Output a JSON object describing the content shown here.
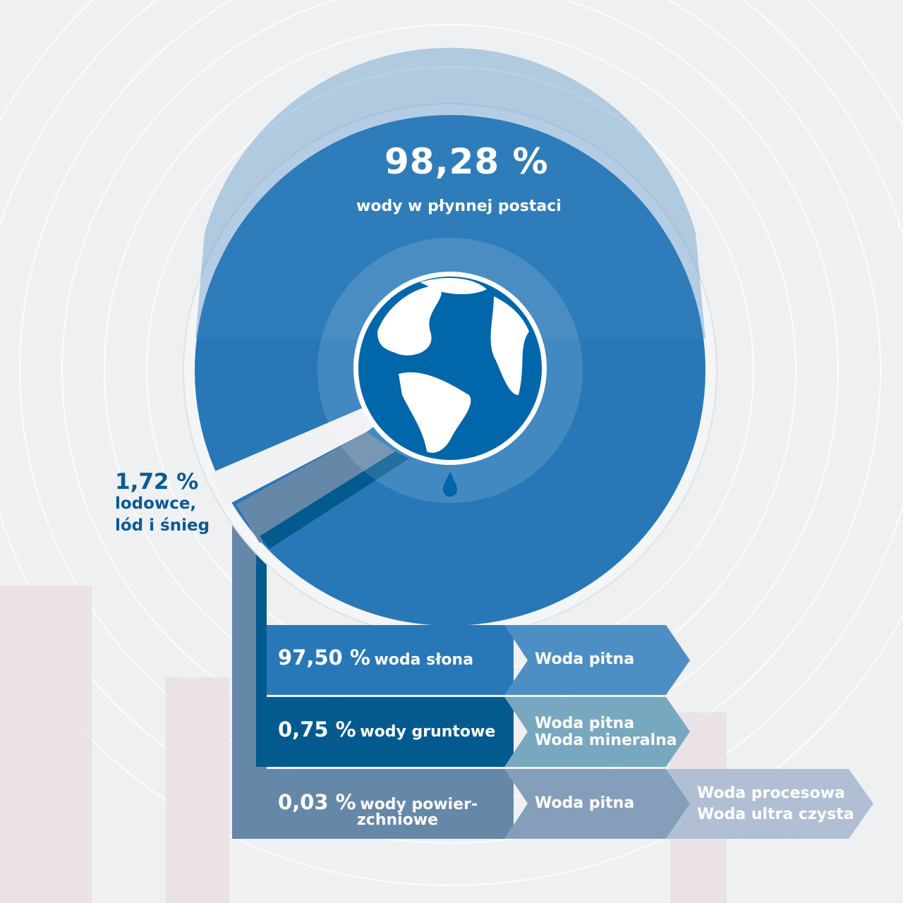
{
  "main": {
    "value": "98,28 %",
    "label": "wody w płynnej postaci"
  },
  "ice": {
    "value": "1,72 %",
    "label_line1": "lodowce,",
    "label_line2": "lód i śnieg"
  },
  "rows": [
    {
      "value": "97,50 %",
      "label": "woda słona",
      "uses": [
        "Woda pitna"
      ]
    },
    {
      "value": "0,75 %",
      "label": "wody gruntowe",
      "uses": [
        "Woda pitna",
        "Woda mineralna"
      ]
    },
    {
      "value": "0,03 %",
      "label_line1": "wody powier-",
      "label_line2": "zchniowe",
      "uses": [
        "Woda pitna"
      ],
      "extra_uses": [
        "Woda procesowa",
        "Woda ultra czysta"
      ]
    }
  ],
  "colors": {
    "liquid": "#2878b8",
    "salt": "#2878b8",
    "ground": "#035a8f",
    "surface": "#6688a8",
    "ice_text": "#0a5a96"
  },
  "icons": {
    "globe": "earth-globe-icon",
    "drop": "water-drop-icon"
  }
}
